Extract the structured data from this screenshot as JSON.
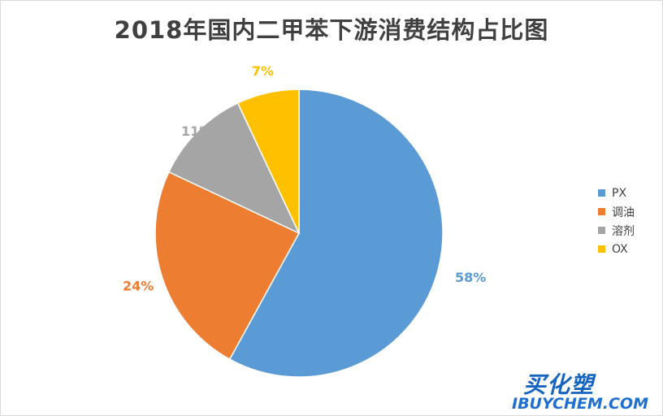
{
  "chart_data": {
    "type": "pie",
    "title": "2018年国内二甲苯下游消费结构占比图",
    "categories": [
      "PX",
      "调油",
      "溶剂",
      "OX"
    ],
    "values": [
      58,
      24,
      11,
      7
    ],
    "value_labels": [
      "58%",
      "24%",
      "11%",
      "7%"
    ],
    "colors": [
      "#5b9bd5",
      "#ed7d31",
      "#a5a5a5",
      "#ffc000"
    ],
    "legend_position": "right"
  },
  "watermark": {
    "brand_cn": "买化塑",
    "brand_en": "IBUYCHEM.COM",
    "colors": {
      "primary": "#1565c0",
      "accent": "#e53935"
    }
  }
}
